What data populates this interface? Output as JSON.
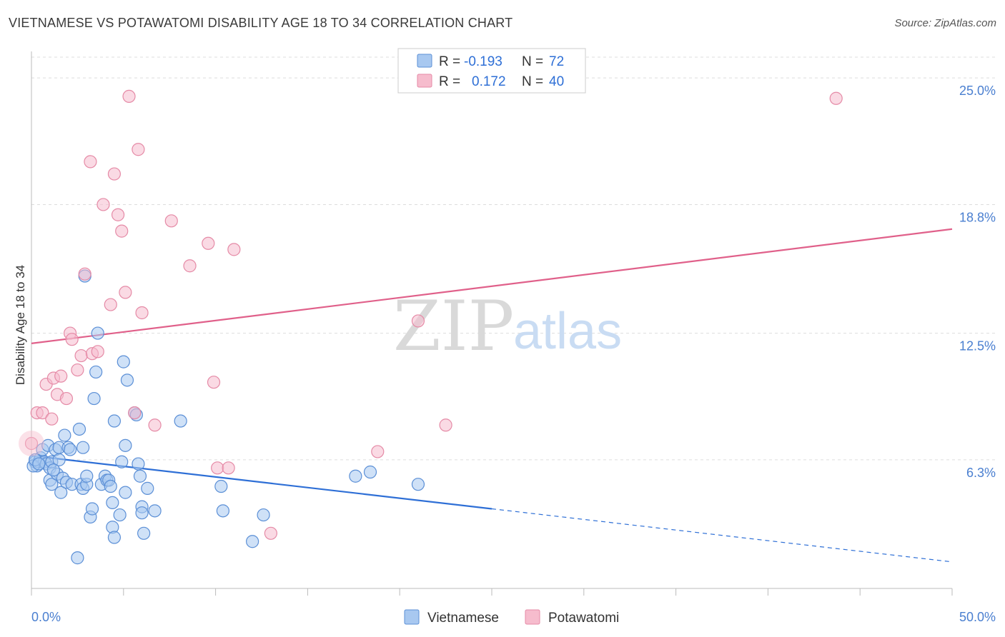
{
  "title": "VIETNAMESE VS POTAWATOMI DISABILITY AGE 18 TO 34 CORRELATION CHART",
  "source": "Source: ZipAtlas.com",
  "watermark": {
    "zip": "ZIP",
    "atlas": "atlas"
  },
  "colors": {
    "vietnamese_fill": "#a8c8f0",
    "vietnamese_stroke": "#5b8fd6",
    "vietnamese_line": "#2e6fd6",
    "potawatomi_fill": "#f6bccd",
    "potawatomi_stroke": "#e58aa6",
    "potawatomi_line": "#e0608a",
    "tick_text": "#4a7fd0",
    "grid": "#dddddd"
  },
  "legend": {
    "r_label": "R =",
    "n_label": "N =",
    "rows": [
      {
        "r": "-0.193",
        "n": "72"
      },
      {
        "r": "0.172",
        "n": "40"
      }
    ]
  },
  "chart_data": {
    "type": "scatter",
    "title": "VIETNAMESE VS POTAWATOMI DISABILITY AGE 18 TO 34 CORRELATION CHART",
    "xlabel": "",
    "ylabel": "Disability Age 18 to 34",
    "xlim": [
      0,
      50
    ],
    "ylim": [
      0,
      26.3
    ],
    "x_tick_labels": [
      "0.0%",
      "50.0%"
    ],
    "y_ticks": [
      6.3,
      12.5,
      18.8,
      25.0
    ],
    "y_tick_labels": [
      "6.3%",
      "12.5%",
      "18.8%",
      "25.0%"
    ],
    "grid": "horizontal dashed",
    "legend_position": "top-center",
    "series": [
      {
        "name": "Vietnamese",
        "r": -0.193,
        "n": 72,
        "trend": {
          "x0": 0,
          "y0": 6.5,
          "x1": 25,
          "y1": 3.9,
          "dashed_to_x": 50,
          "dashed_to_y": 1.3
        },
        "points": [
          [
            0.2,
            6.2
          ],
          [
            0.3,
            6.0
          ],
          [
            0.4,
            6.2
          ],
          [
            0.5,
            6.4
          ],
          [
            0.6,
            6.8
          ],
          [
            0.7,
            6.2
          ],
          [
            0.8,
            6.1
          ],
          [
            0.9,
            7.0
          ],
          [
            1.0,
            5.9
          ],
          [
            1.1,
            6.2
          ],
          [
            1.0,
            5.3
          ],
          [
            1.1,
            5.1
          ],
          [
            1.3,
            6.8
          ],
          [
            1.4,
            5.6
          ],
          [
            1.5,
            6.9
          ],
          [
            1.5,
            6.3
          ],
          [
            1.6,
            4.7
          ],
          [
            1.7,
            5.4
          ],
          [
            1.8,
            7.5
          ],
          [
            1.9,
            5.2
          ],
          [
            2.0,
            6.9
          ],
          [
            2.1,
            6.8
          ],
          [
            2.2,
            5.1
          ],
          [
            2.5,
            1.5
          ],
          [
            2.6,
            7.8
          ],
          [
            2.7,
            5.1
          ],
          [
            2.8,
            4.9
          ],
          [
            2.8,
            6.9
          ],
          [
            2.9,
            15.3
          ],
          [
            3.0,
            5.1
          ],
          [
            3.0,
            5.5
          ],
          [
            3.2,
            3.5
          ],
          [
            3.3,
            3.9
          ],
          [
            3.4,
            9.3
          ],
          [
            3.5,
            10.6
          ],
          [
            3.6,
            12.5
          ],
          [
            3.8,
            5.1
          ],
          [
            4.0,
            5.5
          ],
          [
            4.1,
            5.3
          ],
          [
            4.2,
            5.3
          ],
          [
            4.3,
            5.0
          ],
          [
            4.4,
            3.0
          ],
          [
            4.4,
            4.2
          ],
          [
            4.5,
            2.5
          ],
          [
            4.5,
            8.2
          ],
          [
            4.8,
            3.6
          ],
          [
            4.9,
            6.2
          ],
          [
            5.0,
            11.1
          ],
          [
            5.1,
            4.7
          ],
          [
            5.1,
            7.0
          ],
          [
            5.2,
            10.2
          ],
          [
            5.6,
            8.6
          ],
          [
            5.7,
            8.5
          ],
          [
            5.8,
            6.1
          ],
          [
            5.9,
            5.5
          ],
          [
            6.0,
            4.0
          ],
          [
            6.0,
            3.7
          ],
          [
            6.1,
            2.7
          ],
          [
            6.3,
            4.9
          ],
          [
            6.7,
            3.8
          ],
          [
            8.1,
            8.2
          ],
          [
            10.3,
            5.0
          ],
          [
            10.4,
            3.8
          ],
          [
            12.0,
            2.3
          ],
          [
            12.6,
            3.6
          ],
          [
            17.6,
            5.5
          ],
          [
            18.4,
            5.7
          ],
          [
            21.0,
            5.1
          ],
          [
            0.1,
            6.0
          ],
          [
            0.2,
            6.3
          ],
          [
            0.4,
            6.1
          ],
          [
            1.2,
            5.8
          ]
        ]
      },
      {
        "name": "Potawatomi",
        "r": 0.172,
        "n": 40,
        "trend": {
          "x0": 0,
          "y0": 12.0,
          "x1": 50,
          "y1": 17.6
        },
        "points": [
          [
            0.0,
            7.1
          ],
          [
            0.3,
            8.6
          ],
          [
            0.6,
            8.6
          ],
          [
            0.8,
            10.0
          ],
          [
            1.1,
            8.3
          ],
          [
            1.2,
            10.3
          ],
          [
            1.4,
            9.5
          ],
          [
            1.6,
            10.4
          ],
          [
            1.9,
            9.3
          ],
          [
            2.1,
            12.5
          ],
          [
            2.2,
            12.2
          ],
          [
            2.5,
            10.7
          ],
          [
            2.7,
            11.4
          ],
          [
            2.9,
            15.4
          ],
          [
            3.2,
            20.9
          ],
          [
            3.3,
            11.5
          ],
          [
            3.6,
            11.6
          ],
          [
            3.9,
            18.8
          ],
          [
            4.3,
            13.9
          ],
          [
            4.5,
            20.3
          ],
          [
            4.7,
            18.3
          ],
          [
            4.9,
            17.5
          ],
          [
            5.1,
            14.5
          ],
          [
            5.3,
            24.1
          ],
          [
            5.6,
            8.6
          ],
          [
            5.8,
            21.5
          ],
          [
            6.0,
            13.5
          ],
          [
            6.7,
            8.0
          ],
          [
            7.6,
            18.0
          ],
          [
            8.6,
            15.8
          ],
          [
            9.6,
            16.9
          ],
          [
            9.9,
            10.1
          ],
          [
            10.1,
            5.9
          ],
          [
            10.7,
            5.9
          ],
          [
            11.0,
            16.6
          ],
          [
            13.0,
            2.7
          ],
          [
            21.0,
            13.1
          ],
          [
            22.5,
            8.0
          ],
          [
            18.8,
            6.7
          ],
          [
            43.7,
            24.0
          ]
        ]
      }
    ]
  },
  "bottom_legend": [
    "Vietnamese",
    "Potawatomi"
  ]
}
